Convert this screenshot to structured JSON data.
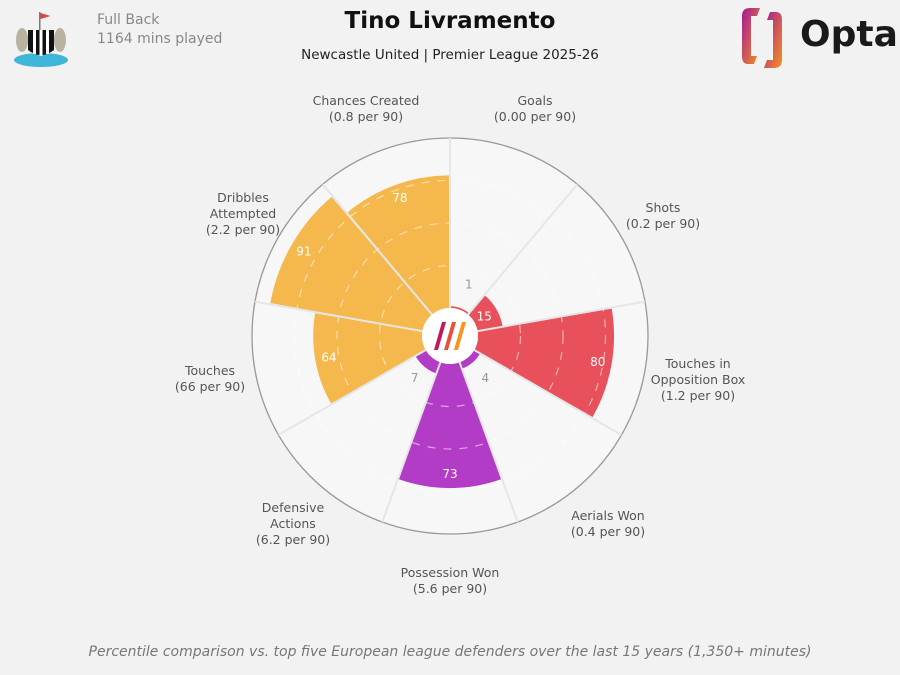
{
  "header": {
    "position": "Full Back",
    "minutes": "1164 mins played",
    "title": "Tino Livramento",
    "subtitle": "Newcastle United | Premier League 2025-26",
    "brand": "Opta"
  },
  "footnote": "Percentile comparison vs. top five European league defenders over the last 15 years (1,350+ minutes)",
  "chart_data": {
    "type": "polar-bar",
    "title": "Tino Livramento",
    "subtitle": "Newcastle United | Premier League 2025-26",
    "scale": [
      0,
      100
    ],
    "categories": [
      "Goals",
      "Shots",
      "Touches in Opposition Box",
      "Aerials Won",
      "Possession Won",
      "Defensive Actions",
      "Touches",
      "Dribbles Attempted",
      "Chances Created"
    ],
    "per90": [
      "0.00 per 90",
      "0.2 per 90",
      "1.2 per 90",
      "0.4 per 90",
      "5.6 per 90",
      "6.2 per 90",
      "66 per 90",
      "2.2 per 90",
      "0.8 per 90"
    ],
    "values": [
      1,
      15,
      80,
      4,
      73,
      7,
      64,
      91,
      78
    ],
    "groups": [
      "attacking",
      "attacking",
      "attacking",
      "defending",
      "defending",
      "defending",
      "possession",
      "possession",
      "possession"
    ],
    "colors": {
      "attacking": "#e8505b",
      "defending": "#b23cc6",
      "possession": "#f5b84c"
    }
  },
  "labels": [
    {
      "name": "Goals",
      "sub": "(0.00 per 90)"
    },
    {
      "name": "Shots",
      "sub": "(0.2 per 90)"
    },
    {
      "name": "Touches in\nOpposition Box",
      "sub": "(1.2 per 90)"
    },
    {
      "name": "Aerials Won",
      "sub": "(0.4 per 90)"
    },
    {
      "name": "Possession Won",
      "sub": "(5.6 per 90)"
    },
    {
      "name": "Defensive\nActions",
      "sub": "(6.2 per 90)"
    },
    {
      "name": "Touches",
      "sub": "(66 per 90)"
    },
    {
      "name": "Dribbles\nAttempted",
      "sub": "(2.2 per 90)"
    },
    {
      "name": "Chances Created",
      "sub": "(0.8 per 90)"
    }
  ]
}
